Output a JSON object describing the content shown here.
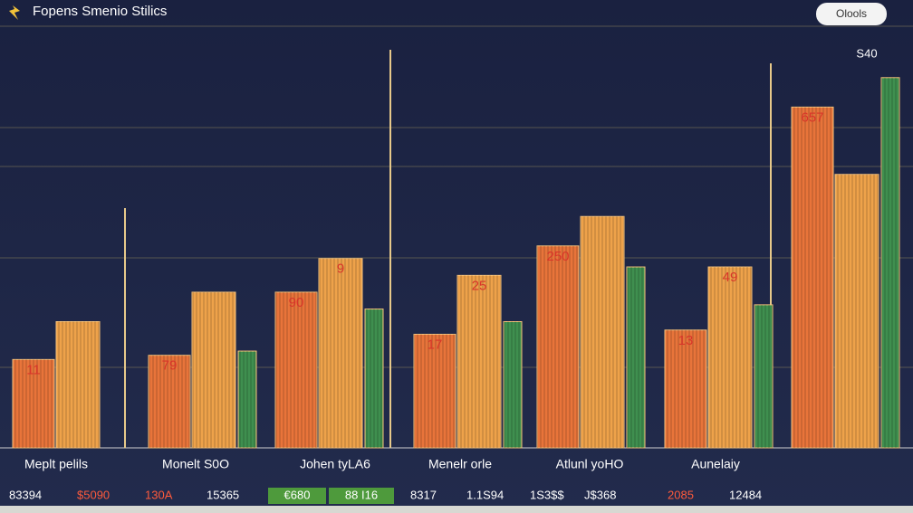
{
  "chart_data": {
    "type": "bar",
    "title": "Fopens Smenio Stilics",
    "button": "Olools",
    "corner_text": "S40",
    "categories": [
      "Meplt pelils",
      "Monelt S0O",
      "Johen tyLA6",
      "Menelr orle",
      "Atlunl yoHO",
      "Aunelaiy",
      null
    ],
    "series": [
      {
        "name": null,
        "color": "#e8743a",
        "values": [
          21,
          22,
          37,
          27,
          48,
          28,
          81
        ],
        "bar_texts": [
          "11",
          "79",
          "90",
          "17",
          "250",
          "13",
          "657"
        ]
      },
      {
        "name": null,
        "color": "#eea24a",
        "values": [
          30,
          37,
          45,
          41,
          55,
          43,
          65
        ],
        "bar_texts": [
          null,
          null,
          "9",
          "25",
          null,
          "49",
          null
        ]
      },
      {
        "name": null,
        "color": "#3f8f4f",
        "values": [
          null,
          23,
          33,
          30,
          43,
          34,
          88
        ],
        "bar_texts": [
          null,
          null,
          null,
          null,
          null,
          null,
          null
        ]
      }
    ],
    "ylim": [
      0,
      100
    ],
    "footer": [
      {
        "text": "83394",
        "color": "#ffffff"
      },
      {
        "text": "$5090",
        "color": "#ff5a3c"
      },
      {
        "text": "130A",
        "color": "#ff5a3c"
      },
      {
        "text": "15365",
        "color": "#ffffff"
      },
      {
        "text": "€680",
        "color": "#ffffff",
        "box": "#4e9a3c"
      },
      {
        "text": "88 I16",
        "color": "#ffffff",
        "box": "#4e9a3c"
      },
      {
        "text": "8317",
        "color": "#ffffff"
      },
      {
        "text": "1.1S94",
        "color": "#ffffff"
      },
      {
        "text": "1S3$$",
        "color": "#ffffff"
      },
      {
        "text": "J$368",
        "color": "#ffffff"
      },
      {
        "text": "2085",
        "color": "#ff5a3c"
      },
      {
        "text": "12484",
        "color": "#ffffff"
      }
    ]
  }
}
